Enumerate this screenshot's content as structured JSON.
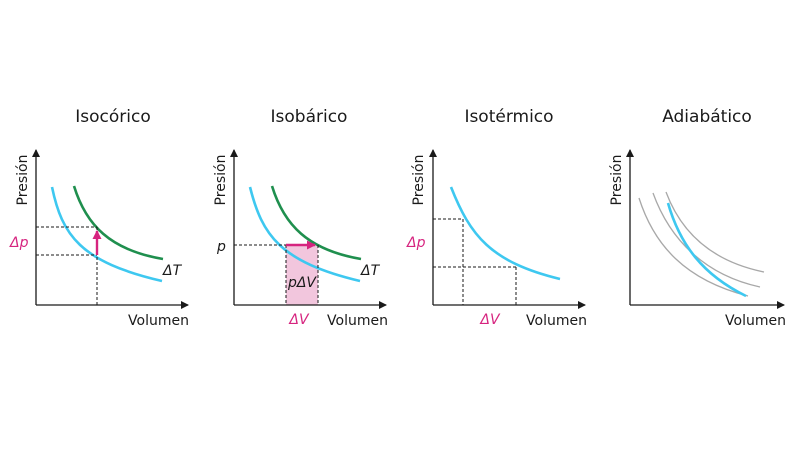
{
  "colors": {
    "axis": "#1a1a1a",
    "cyan": "#3ec8f0",
    "green": "#1f8f4e",
    "magenta": "#d6247f",
    "pink_fill": "#f2c6dd",
    "grey": "#a8a8a8",
    "text": "#1a1a1a"
  },
  "panels": [
    {
      "title": "Isocórico",
      "ylabel": "Presión",
      "xlabel": "Volumen",
      "delta_p": "Δp",
      "delta_T": "ΔT"
    },
    {
      "title": "Isobárico",
      "ylabel": "Presión",
      "xlabel": "Volumen",
      "p": "p",
      "delta_V": "ΔV",
      "p_delta_V": "pΔV",
      "delta_T": "ΔT"
    },
    {
      "title": "Isotérmico",
      "ylabel": "Presión",
      "xlabel": "Volumen",
      "delta_p": "Δp",
      "delta_V": "ΔV"
    },
    {
      "title": "Adiabático",
      "ylabel": "Presión",
      "xlabel": "Volumen"
    }
  ]
}
